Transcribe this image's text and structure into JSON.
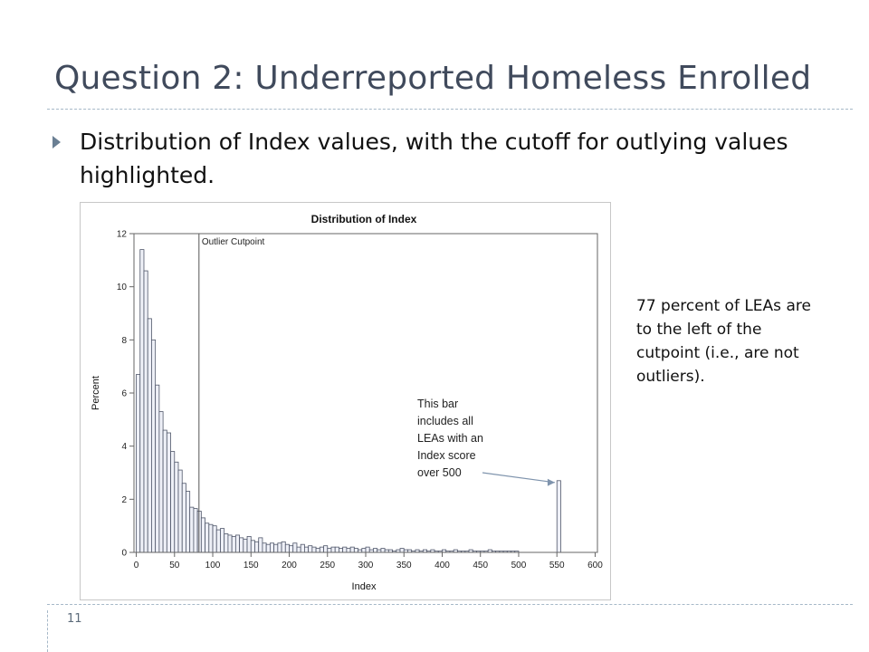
{
  "slide": {
    "title": "Question 2: Underreported Homeless Enrolled",
    "bullet": "Distribution of Index values, with the cutoff for outlying values highlighted.",
    "side_note": "77 percent of LEAs are to the left of the cutpoint (i.e., are not outliers).",
    "page_number": "11",
    "bullet_icon": "triangle-bullet-icon"
  },
  "chart_data": {
    "type": "bar",
    "title": "Distribution of Index",
    "xlabel": "Index",
    "ylabel": "Percent",
    "xlim": [
      -3,
      603
    ],
    "ylim": [
      0,
      12
    ],
    "x_ticks": [
      0,
      50,
      100,
      150,
      200,
      250,
      300,
      350,
      400,
      450,
      500,
      550,
      600
    ],
    "y_ticks": [
      0,
      2,
      4,
      6,
      8,
      10,
      12
    ],
    "bin_width": 5,
    "bars": [
      {
        "start": 0,
        "value": 6.7
      },
      {
        "start": 5,
        "value": 11.4
      },
      {
        "start": 10,
        "value": 10.6
      },
      {
        "start": 15,
        "value": 8.8
      },
      {
        "start": 20,
        "value": 8.0
      },
      {
        "start": 25,
        "value": 6.3
      },
      {
        "start": 30,
        "value": 5.3
      },
      {
        "start": 35,
        "value": 4.6
      },
      {
        "start": 40,
        "value": 4.5
      },
      {
        "start": 45,
        "value": 3.8
      },
      {
        "start": 50,
        "value": 3.4
      },
      {
        "start": 55,
        "value": 3.1
      },
      {
        "start": 60,
        "value": 2.6
      },
      {
        "start": 65,
        "value": 2.3
      },
      {
        "start": 70,
        "value": 1.7
      },
      {
        "start": 75,
        "value": 1.65
      },
      {
        "start": 80,
        "value": 1.55
      },
      {
        "start": 85,
        "value": 1.3
      },
      {
        "start": 90,
        "value": 1.1
      },
      {
        "start": 95,
        "value": 1.05
      },
      {
        "start": 100,
        "value": 1.0
      },
      {
        "start": 105,
        "value": 0.85
      },
      {
        "start": 110,
        "value": 0.9
      },
      {
        "start": 115,
        "value": 0.7
      },
      {
        "start": 120,
        "value": 0.65
      },
      {
        "start": 125,
        "value": 0.6
      },
      {
        "start": 130,
        "value": 0.65
      },
      {
        "start": 135,
        "value": 0.55
      },
      {
        "start": 140,
        "value": 0.5
      },
      {
        "start": 145,
        "value": 0.6
      },
      {
        "start": 150,
        "value": 0.45
      },
      {
        "start": 155,
        "value": 0.4
      },
      {
        "start": 160,
        "value": 0.55
      },
      {
        "start": 165,
        "value": 0.35
      },
      {
        "start": 170,
        "value": 0.3
      },
      {
        "start": 175,
        "value": 0.35
      },
      {
        "start": 180,
        "value": 0.3
      },
      {
        "start": 185,
        "value": 0.35
      },
      {
        "start": 190,
        "value": 0.4
      },
      {
        "start": 195,
        "value": 0.3
      },
      {
        "start": 200,
        "value": 0.25
      },
      {
        "start": 205,
        "value": 0.35
      },
      {
        "start": 210,
        "value": 0.2
      },
      {
        "start": 215,
        "value": 0.3
      },
      {
        "start": 220,
        "value": 0.2
      },
      {
        "start": 225,
        "value": 0.25
      },
      {
        "start": 230,
        "value": 0.2
      },
      {
        "start": 235,
        "value": 0.15
      },
      {
        "start": 240,
        "value": 0.2
      },
      {
        "start": 245,
        "value": 0.25
      },
      {
        "start": 250,
        "value": 0.15
      },
      {
        "start": 255,
        "value": 0.2
      },
      {
        "start": 260,
        "value": 0.2
      },
      {
        "start": 265,
        "value": 0.15
      },
      {
        "start": 270,
        "value": 0.2
      },
      {
        "start": 275,
        "value": 0.15
      },
      {
        "start": 280,
        "value": 0.2
      },
      {
        "start": 285,
        "value": 0.15
      },
      {
        "start": 290,
        "value": 0.1
      },
      {
        "start": 295,
        "value": 0.15
      },
      {
        "start": 300,
        "value": 0.2
      },
      {
        "start": 305,
        "value": 0.1
      },
      {
        "start": 310,
        "value": 0.15
      },
      {
        "start": 315,
        "value": 0.1
      },
      {
        "start": 320,
        "value": 0.15
      },
      {
        "start": 325,
        "value": 0.1
      },
      {
        "start": 330,
        "value": 0.1
      },
      {
        "start": 335,
        "value": 0.05
      },
      {
        "start": 340,
        "value": 0.1
      },
      {
        "start": 345,
        "value": 0.15
      },
      {
        "start": 350,
        "value": 0.1
      },
      {
        "start": 355,
        "value": 0.1
      },
      {
        "start": 360,
        "value": 0.05
      },
      {
        "start": 365,
        "value": 0.1
      },
      {
        "start": 370,
        "value": 0.05
      },
      {
        "start": 375,
        "value": 0.1
      },
      {
        "start": 380,
        "value": 0.05
      },
      {
        "start": 385,
        "value": 0.1
      },
      {
        "start": 390,
        "value": 0.05
      },
      {
        "start": 395,
        "value": 0.05
      },
      {
        "start": 400,
        "value": 0.1
      },
      {
        "start": 405,
        "value": 0.05
      },
      {
        "start": 410,
        "value": 0.05
      },
      {
        "start": 415,
        "value": 0.1
      },
      {
        "start": 420,
        "value": 0.05
      },
      {
        "start": 425,
        "value": 0.05
      },
      {
        "start": 430,
        "value": 0.05
      },
      {
        "start": 435,
        "value": 0.1
      },
      {
        "start": 440,
        "value": 0.05
      },
      {
        "start": 445,
        "value": 0.05
      },
      {
        "start": 450,
        "value": 0.05
      },
      {
        "start": 455,
        "value": 0.05
      },
      {
        "start": 460,
        "value": 0.1
      },
      {
        "start": 465,
        "value": 0.05
      },
      {
        "start": 470,
        "value": 0.05
      },
      {
        "start": 475,
        "value": 0.05
      },
      {
        "start": 480,
        "value": 0.05
      },
      {
        "start": 485,
        "value": 0.05
      },
      {
        "start": 490,
        "value": 0.05
      },
      {
        "start": 495,
        "value": 0.05
      },
      {
        "start": 550,
        "value": 2.7
      }
    ],
    "cutpoint": {
      "x": 82,
      "label": "Outlier Cutpoint"
    },
    "annotation": {
      "lines": [
        "This bar",
        "includes all",
        "LEAs with an",
        "Index score",
        "over 500"
      ],
      "arrow_target_x": 552,
      "arrow_target_y": 2.7
    },
    "colors": {
      "bar_fill": "#eef0f7",
      "bar_stroke": "#50576a",
      "axis": "#666666",
      "arrow": "#7f94ad"
    },
    "grid": false,
    "legend": "none"
  }
}
